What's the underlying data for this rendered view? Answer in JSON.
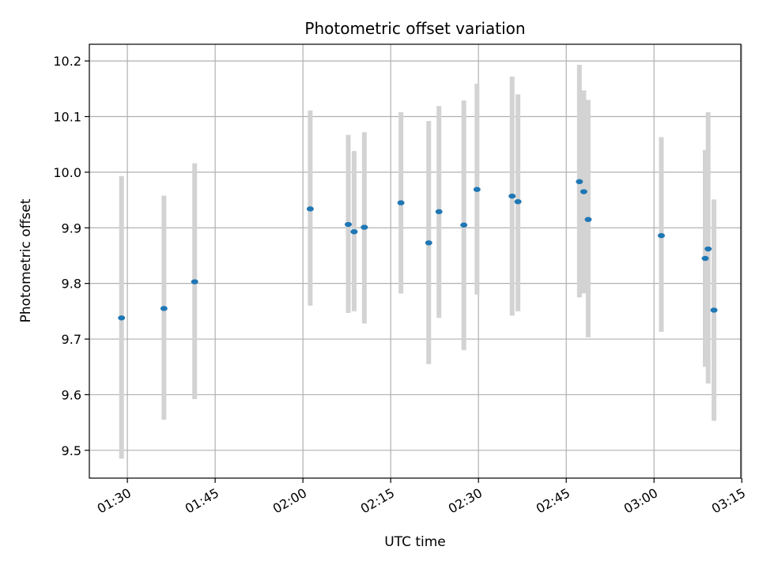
{
  "chart_data": {
    "type": "scatter",
    "title": "Photometric offset variation",
    "xlabel": "UTC time",
    "ylabel": "Photometric offset",
    "xlim": [
      "01:23:30",
      "03:14:50"
    ],
    "ylim": [
      9.45,
      10.23
    ],
    "grid": true,
    "x_ticks": [
      "01:30",
      "01:45",
      "02:00",
      "02:15",
      "02:30",
      "02:45",
      "03:00",
      "03:15"
    ],
    "y_ticks": [
      "9.5",
      "9.6",
      "9.7",
      "9.8",
      "9.9",
      "10.0",
      "10.1",
      "10.2"
    ],
    "colors": {
      "point": "#1f77b4",
      "errorbar": "#d3d3d3",
      "grid": "#b0b0b0"
    },
    "series": [
      {
        "x": [
          "01:29:00",
          "01:36:15",
          "01:41:30",
          "02:01:15",
          "02:07:45",
          "02:08:45",
          "02:10:30",
          "02:16:45",
          "02:21:30",
          "02:23:15",
          "02:27:30",
          "02:29:45",
          "02:35:45",
          "02:36:45",
          "02:47:15",
          "02:48:00",
          "02:48:45",
          "03:01:15",
          "03:08:45",
          "03:09:15",
          "03:10:15"
        ],
        "y": [
          9.738,
          9.755,
          9.803,
          9.934,
          9.906,
          9.893,
          9.901,
          9.945,
          9.873,
          9.929,
          9.905,
          9.969,
          9.957,
          9.947,
          9.983,
          9.965,
          9.915,
          9.886,
          9.845,
          9.862,
          9.752
        ],
        "yerr_low": [
          9.485,
          9.555,
          9.592,
          9.76,
          9.747,
          9.75,
          9.728,
          9.782,
          9.655,
          9.738,
          9.68,
          9.78,
          9.742,
          9.75,
          9.775,
          9.782,
          9.703,
          9.713,
          9.65,
          9.62,
          9.553
        ],
        "yerr_high": [
          9.993,
          9.958,
          10.016,
          10.111,
          10.067,
          10.038,
          10.072,
          10.108,
          10.092,
          10.119,
          10.129,
          10.159,
          10.172,
          10.14,
          10.193,
          10.147,
          10.13,
          10.063,
          10.04,
          10.108,
          9.951
        ]
      }
    ]
  }
}
